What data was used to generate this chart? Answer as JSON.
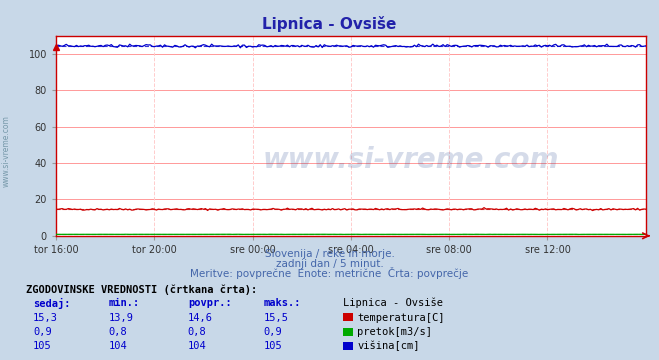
{
  "title": "Lipnica - Ovsiše",
  "title_color": "#2222aa",
  "bg_color": "#c8d8e8",
  "plot_bg_color": "#ffffff",
  "grid_color_h": "#ff9999",
  "grid_color_v": "#ffcccc",
  "xlabel_ticks": [
    "tor 16:00",
    "tor 20:00",
    "sre 00:00",
    "sre 04:00",
    "sre 08:00",
    "sre 12:00"
  ],
  "tick_positions": [
    0.0,
    0.1667,
    0.3333,
    0.5,
    0.6667,
    0.8333
  ],
  "ylim": [
    0,
    110
  ],
  "yticks": [
    0,
    20,
    40,
    60,
    80,
    100
  ],
  "subtitle1": "Slovenija / reke in morje.",
  "subtitle2": "zadnji dan / 5 minut.",
  "subtitle3": "Meritve: povprečne  Enote: metrične  Črta: povprečje",
  "subtitle_color": "#4466aa",
  "watermark": "www.si-vreme.com",
  "watermark_color": "#1a3a8a",
  "watermark_alpha": 0.18,
  "table_header": "ZGODOVINSKE VREDNOSTI (črtkana črta):",
  "table_cols": [
    "sedaj:",
    "min.:",
    "povpr.:",
    "maks.:",
    "Lipnica - Ovsiše"
  ],
  "table_rows": [
    [
      "15,3",
      "13,9",
      "14,6",
      "15,5",
      "temperatura[C]"
    ],
    [
      "0,9",
      "0,8",
      "0,8",
      "0,9",
      "pretok[m3/s]"
    ],
    [
      "105",
      "104",
      "104",
      "105",
      "višina[cm]"
    ]
  ],
  "row_colors": [
    "#cc0000",
    "#00aa00",
    "#0000cc"
  ],
  "n_points": 289,
  "temp_value": 14.6,
  "temp_min": 13.9,
  "temp_max": 15.5,
  "temp_color": "#cc0000",
  "pretok_value": 0.8,
  "pretok_color": "#00aa00",
  "visina_value": 104.5,
  "visina_color": "#0000cc",
  "axis_color": "#cc0000",
  "left_label_color": "#7799aa",
  "left_label": "www.si-vreme.com"
}
